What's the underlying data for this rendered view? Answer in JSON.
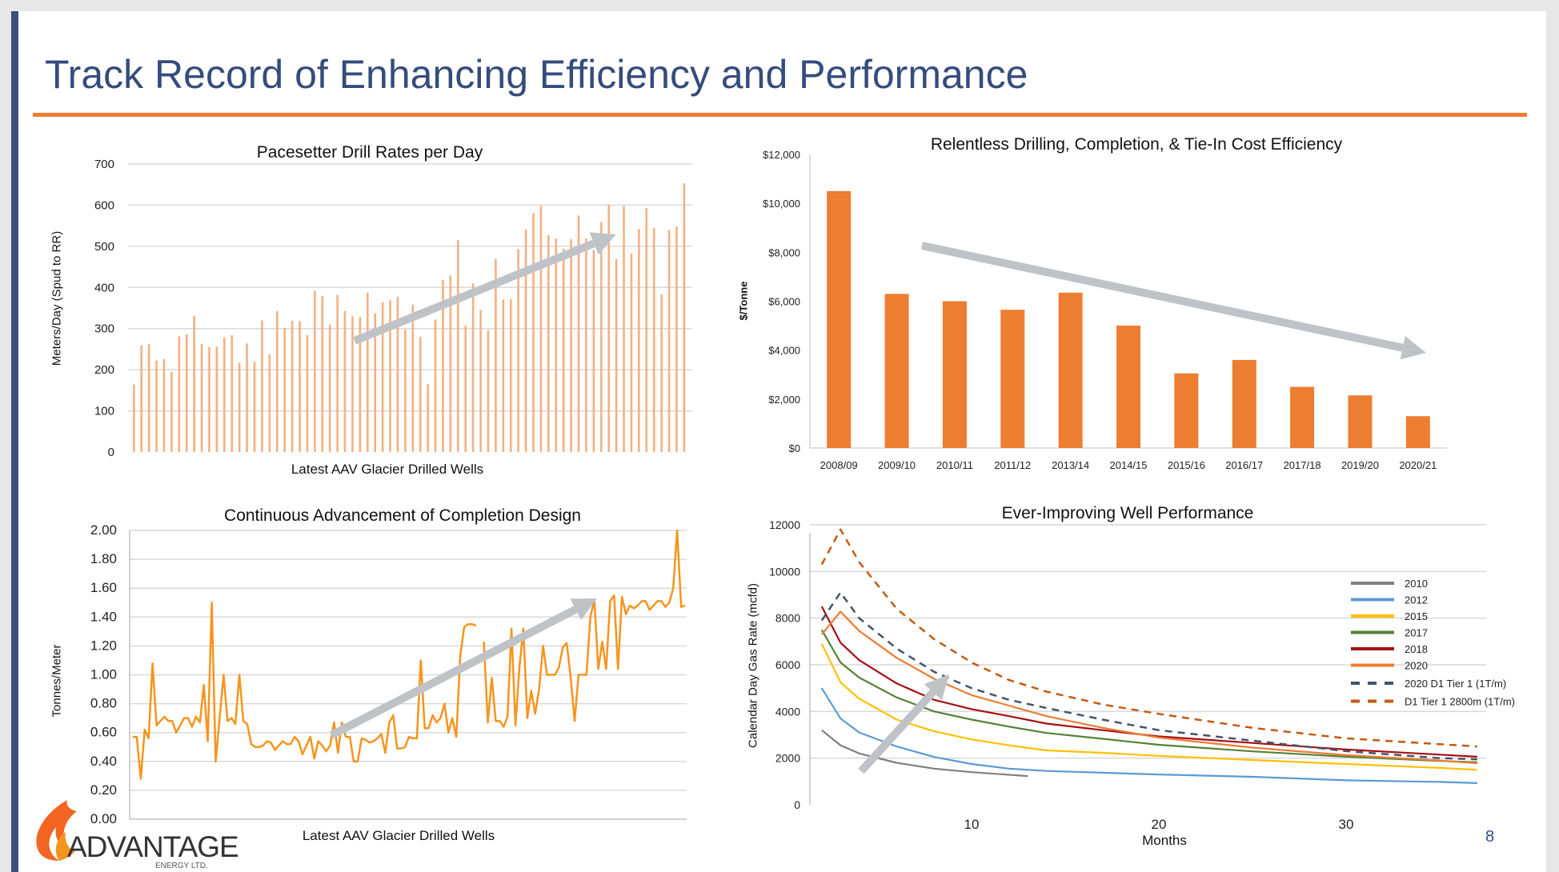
{
  "page": {
    "title": "Track Record of Enhancing Efficiency and Performance",
    "page_number": "8",
    "accent_color": "#ed7d31",
    "title_color": "#354c7c"
  },
  "logo": {
    "name": "ADVANTAGE",
    "sub": "ENERGY LTD."
  },
  "chart_data": [
    {
      "type": "bar",
      "title": "Pacesetter Drill Rates per Day",
      "xlabel": "Latest AAV Glacier Drilled Wells",
      "ylabel": "Meters/Day (Spud to RR)",
      "ylim": [
        0,
        700
      ],
      "yticks": [
        "0",
        "100",
        "200",
        "300",
        "400",
        "500",
        "600",
        "700"
      ],
      "grid": true,
      "color": "#f4b183",
      "trend_arrow": "up",
      "values": [
        164,
        260,
        262,
        222,
        226,
        195,
        281,
        286,
        331,
        262,
        255,
        256,
        278,
        284,
        217,
        264,
        220,
        320,
        237,
        342,
        301,
        319,
        318,
        284,
        392,
        379,
        310,
        382,
        343,
        330,
        328,
        387,
        337,
        364,
        369,
        377,
        298,
        358,
        280,
        165,
        322,
        418,
        429,
        515,
        307,
        410,
        345,
        296,
        469,
        371,
        371,
        493,
        541,
        581,
        598,
        527,
        519,
        494,
        517,
        575,
        519,
        491,
        559,
        601,
        469,
        598,
        482,
        542,
        593,
        545,
        383,
        539,
        548,
        653
      ]
    },
    {
      "type": "bar",
      "title": "Relentless Drilling, Completion, & Tie-In Cost Efficiency",
      "xlabel": "",
      "ylabel": "$/Tonne",
      "ylim": [
        0,
        12000
      ],
      "yticks": [
        "$0",
        "$2,000",
        "$4,000",
        "$6,000",
        "$8,000",
        "$10,000",
        "$12,000"
      ],
      "grid": false,
      "color": "#ed7d31",
      "trend_arrow": "down",
      "categories": [
        "2008/09",
        "2009/10",
        "2010/11",
        "2011/12",
        "2013/14",
        "2014/15",
        "2015/16",
        "2016/17",
        "2017/18",
        "2019/20",
        "2020/21"
      ],
      "values": [
        10500,
        6300,
        6000,
        5650,
        6350,
        5000,
        3050,
        3600,
        2500,
        2150,
        1300
      ]
    },
    {
      "type": "line",
      "title": "Continuous Advancement of Completion Design",
      "xlabel": "Latest AAV Glacier Drilled Wells",
      "ylabel": "Tonnes/Meter",
      "ylim": [
        0,
        2
      ],
      "yticks": [
        "0.00",
        "0.20",
        "0.40",
        "0.60",
        "0.80",
        "1.00",
        "1.20",
        "1.40",
        "1.60",
        "1.80",
        "2.00"
      ],
      "grid": true,
      "color": "#f7941d",
      "trend_arrow": "up",
      "values": [
        0.57,
        0.57,
        0.28,
        0.62,
        0.56,
        1.08,
        0.65,
        0.68,
        0.71,
        0.68,
        0.68,
        0.6,
        0.65,
        0.7,
        0.7,
        0.64,
        0.71,
        0.67,
        0.93,
        0.54,
        1.5,
        0.4,
        0.7,
        1.0,
        0.68,
        0.7,
        0.66,
        1.0,
        0.68,
        0.66,
        0.52,
        0.5,
        0.5,
        0.51,
        0.54,
        0.53,
        0.48,
        0.51,
        0.54,
        0.52,
        0.52,
        0.57,
        0.54,
        0.45,
        0.51,
        0.57,
        0.42,
        0.54,
        0.51,
        0.47,
        0.51,
        0.67,
        0.46,
        0.67,
        0.57,
        0.57,
        0.4,
        0.4,
        0.56,
        0.55,
        0.53,
        0.54,
        0.56,
        0.59,
        0.46,
        0.67,
        0.72,
        0.49,
        0.49,
        0.5,
        0.57,
        0.56,
        0.56,
        1.1,
        0.63,
        0.63,
        0.72,
        0.67,
        0.7,
        0.8,
        0.6,
        0.7,
        0.57,
        1.13,
        1.33,
        1.35,
        1.35,
        1.34,
        null,
        1.23,
        0.67,
        0.98,
        0.68,
        0.68,
        0.64,
        0.71,
        1.32,
        0.65,
        1.05,
        1.32,
        0.7,
        0.89,
        0.73,
        0.9,
        1.2,
        1.0,
        1.0,
        1.0,
        1.05,
        1.19,
        1.22,
        0.98,
        0.68,
        1.0,
        1.0,
        1.0,
        1.4,
        1.52,
        1.04,
        1.23,
        1.04,
        1.51,
        1.55,
        1.04,
        1.54,
        1.42,
        1.48,
        1.46,
        1.48,
        1.51,
        1.51,
        1.45,
        1.48,
        1.51,
        1.51,
        1.47,
        1.5,
        1.6,
        2.0,
        1.47,
        1.48
      ]
    },
    {
      "type": "line",
      "title": "Ever-Improving Well Performance",
      "xlabel": "Months",
      "ylabel": "Calendar Day Gas Rate (mcfd)",
      "ylim": [
        0,
        12000
      ],
      "xlim": [
        0,
        38
      ],
      "yticks": [
        "0",
        "2000",
        "4000",
        "6000",
        "8000",
        "10000",
        "12000"
      ],
      "xticks": [
        "10",
        "20",
        "30"
      ],
      "grid": true,
      "legend": "right",
      "trend_arrow": "up",
      "series": [
        {
          "name": "2010",
          "color": "#7f7f7f",
          "dashed": false,
          "points": [
            [
              2,
              3200
            ],
            [
              3,
              2550
            ],
            [
              4,
              2200
            ],
            [
              6,
              1800
            ],
            [
              8,
              1550
            ],
            [
              10,
              1400
            ],
            [
              13,
              1230
            ]
          ]
        },
        {
          "name": "2012",
          "color": "#5b9bd5",
          "dashed": false,
          "points": [
            [
              2,
              5000
            ],
            [
              3,
              3700
            ],
            [
              4,
              3100
            ],
            [
              6,
              2500
            ],
            [
              8,
              2050
            ],
            [
              10,
              1750
            ],
            [
              12,
              1550
            ],
            [
              14,
              1450
            ],
            [
              20,
              1300
            ],
            [
              25,
              1200
            ],
            [
              30,
              1050
            ],
            [
              35,
              980
            ],
            [
              37,
              930
            ]
          ]
        },
        {
          "name": "2015",
          "color": "#ffc000",
          "dashed": false,
          "points": [
            [
              2,
              6900
            ],
            [
              3,
              5250
            ],
            [
              4,
              4550
            ],
            [
              6,
              3650
            ],
            [
              8,
              3150
            ],
            [
              10,
              2800
            ],
            [
              12,
              2550
            ],
            [
              14,
              2330
            ],
            [
              17,
              2230
            ],
            [
              20,
              2100
            ],
            [
              25,
              1920
            ],
            [
              30,
              1750
            ],
            [
              35,
              1580
            ],
            [
              37,
              1500
            ]
          ]
        },
        {
          "name": "2017",
          "color": "#548235",
          "dashed": false,
          "points": [
            [
              2,
              7500
            ],
            [
              3,
              6100
            ],
            [
              4,
              5450
            ],
            [
              6,
              4600
            ],
            [
              8,
              4000
            ],
            [
              10,
              3650
            ],
            [
              12,
              3350
            ],
            [
              14,
              3080
            ],
            [
              17,
              2830
            ],
            [
              20,
              2570
            ],
            [
              25,
              2290
            ],
            [
              30,
              2060
            ],
            [
              35,
              1880
            ],
            [
              37,
              1820
            ]
          ]
        },
        {
          "name": "2018",
          "color": "#a50f15",
          "dashed": false,
          "points": [
            [
              2,
              8500
            ],
            [
              3,
              6950
            ],
            [
              4,
              6200
            ],
            [
              6,
              5200
            ],
            [
              8,
              4500
            ],
            [
              10,
              4100
            ],
            [
              12,
              3800
            ],
            [
              14,
              3480
            ],
            [
              17,
              3200
            ],
            [
              20,
              2930
            ],
            [
              25,
              2650
            ],
            [
              30,
              2370
            ],
            [
              35,
              2150
            ],
            [
              37,
              2060
            ]
          ]
        },
        {
          "name": "2020",
          "color": "#ed7d31",
          "dashed": false,
          "points": [
            [
              2,
              7300
            ],
            [
              3,
              8280
            ],
            [
              4,
              7450
            ],
            [
              6,
              6300
            ],
            [
              8,
              5400
            ],
            [
              10,
              4700
            ],
            [
              12,
              4250
            ],
            [
              14,
              3800
            ],
            [
              17,
              3300
            ],
            [
              20,
              2880
            ],
            [
              25,
              2450
            ],
            [
              30,
              2130
            ],
            [
              35,
              1900
            ],
            [
              37,
              1780
            ]
          ]
        },
        {
          "name": "2020 D1 Tier 1 (1T/m)",
          "color": "#44546a",
          "dashed": true,
          "points": [
            [
              2,
              7900
            ],
            [
              3,
              9100
            ],
            [
              4,
              8000
            ],
            [
              6,
              6700
            ],
            [
              8,
              5700
            ],
            [
              10,
              5000
            ],
            [
              12,
              4500
            ],
            [
              14,
              4150
            ],
            [
              17,
              3650
            ],
            [
              20,
              3200
            ],
            [
              25,
              2750
            ],
            [
              30,
              2300
            ],
            [
              35,
              2000
            ],
            [
              37,
              1950
            ]
          ]
        },
        {
          "name": "D1 Tier 1 2800m (1T/m)",
          "color": "#c55a11",
          "dashed": true,
          "points": [
            [
              2,
              10300
            ],
            [
              3,
              11800
            ],
            [
              4,
              10400
            ],
            [
              6,
              8400
            ],
            [
              8,
              7100
            ],
            [
              10,
              6100
            ],
            [
              12,
              5350
            ],
            [
              14,
              4850
            ],
            [
              17,
              4300
            ],
            [
              20,
              3900
            ],
            [
              25,
              3300
            ],
            [
              30,
              2850
            ],
            [
              35,
              2600
            ],
            [
              37,
              2500
            ]
          ]
        }
      ]
    }
  ]
}
